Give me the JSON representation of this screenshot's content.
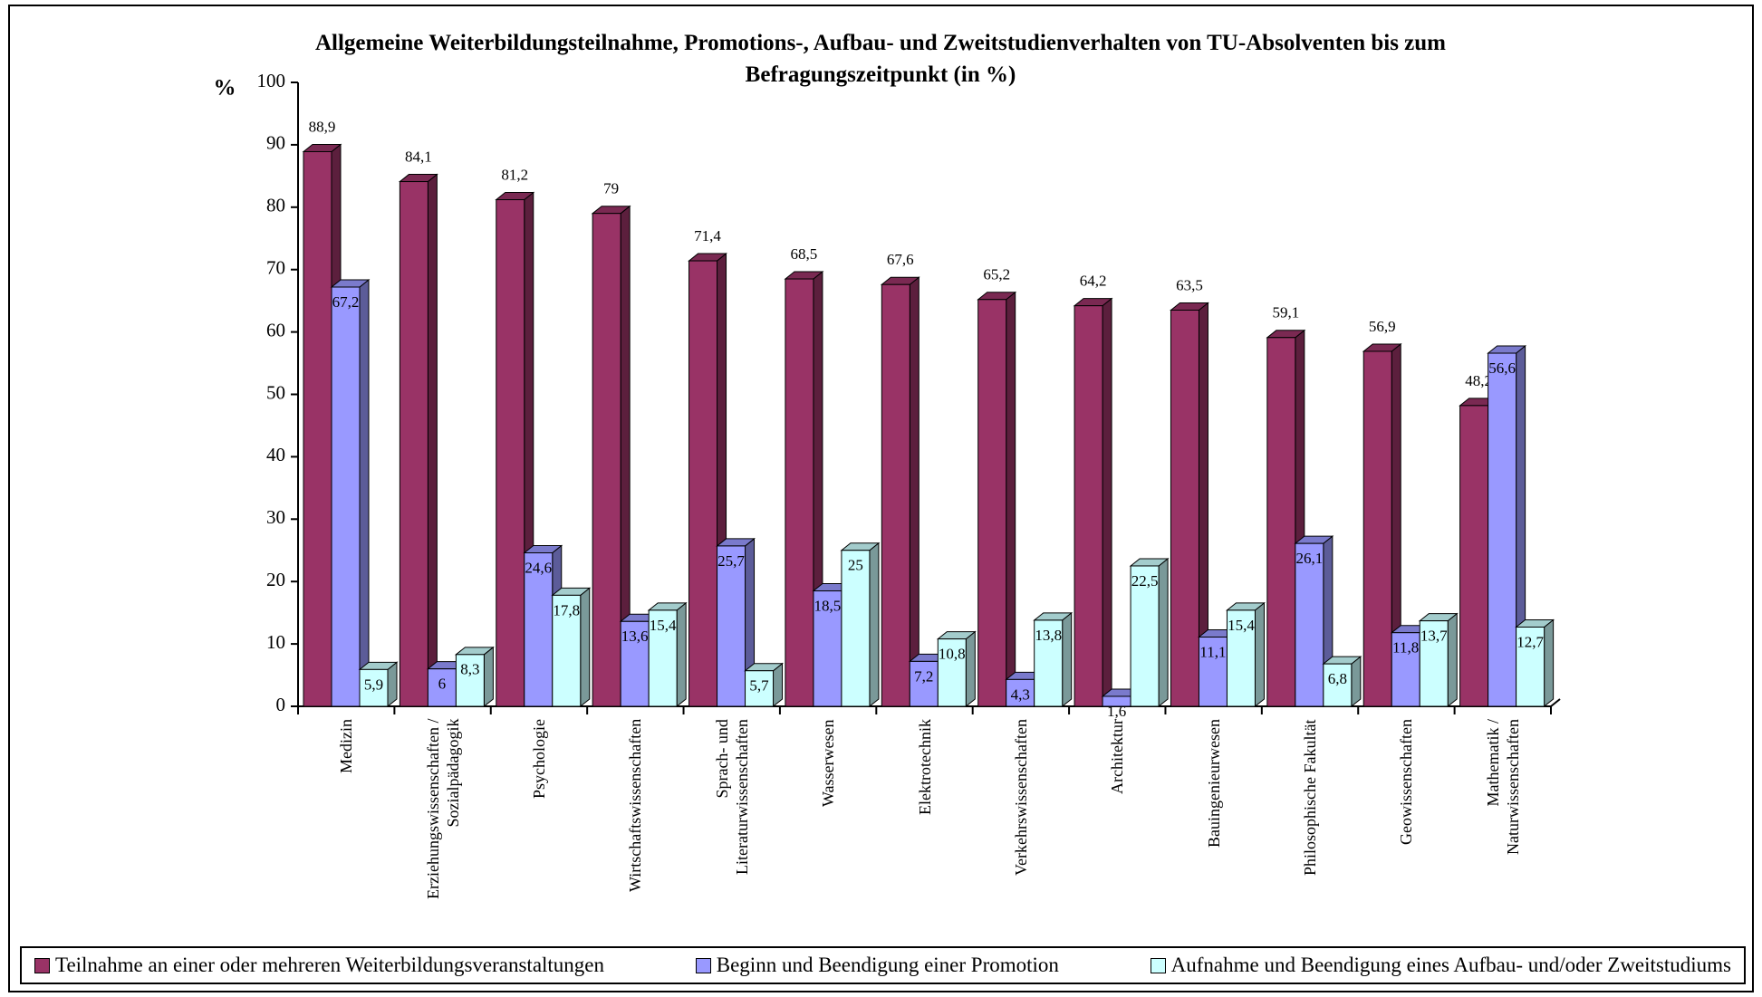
{
  "chart_data": {
    "type": "bar",
    "title": "Allgemeine Weiterbildungsteilnahme, Promotions-, Aufbau- und Zweitstudienverhalten von TU-Absolventen bis zum Befragungszeitpunkt (in %)",
    "y_label": "%",
    "categories": [
      "Medizin",
      "Erziehungswissenschaften /\nSozialpädagogik",
      "Psychologie",
      "Wirtschaftswissenschaften",
      "Sprach- und\nLiteraturwissenschaften",
      "Wasserwesen",
      "Elektrotechnik",
      "Verkehrswissenschaften",
      "Architektur",
      "Bauingenieurwesen",
      "Philosophische Fakultät",
      "Geowissenschaften",
      "Mathematik /\nNaturwissenschaften"
    ],
    "series": [
      {
        "name": "Teilnahme an einer oder mehreren Weiterbildungsveranstaltungen",
        "color": "#993366",
        "values": [
          88.9,
          84.1,
          81.2,
          79,
          71.4,
          68.5,
          67.6,
          65.2,
          64.2,
          63.5,
          59.1,
          56.9,
          48.2
        ],
        "value_labels": [
          "88,9",
          "84,1",
          "81,2",
          "79",
          "71,4",
          "68,5",
          "67,6",
          "65,2",
          "64,2",
          "63,5",
          "59,1",
          "56,9",
          "48,2"
        ]
      },
      {
        "name": "Beginn und Beendigung einer Promotion",
        "color": "#9999ff",
        "values": [
          67.2,
          6,
          24.6,
          13.6,
          25.7,
          18.5,
          7.2,
          4.3,
          1.6,
          11.1,
          26.1,
          11.8,
          56.6
        ],
        "value_labels": [
          "67,2",
          "6",
          "24,6",
          "13,6",
          "25,7",
          "18,5",
          "7,2",
          "4,3",
          "1,6",
          "11,1",
          "26,1",
          "11,8",
          "56,6"
        ]
      },
      {
        "name": "Aufnahme und Beendigung eines Aufbau- und/oder Zweitstudiums",
        "color": "#ccffff",
        "values": [
          5.9,
          8.3,
          17.8,
          15.4,
          5.7,
          25,
          10.8,
          13.8,
          22.5,
          15.4,
          6.8,
          13.7,
          12.7
        ],
        "value_labels": [
          "5,9",
          "8,3",
          "17,8",
          "15,4",
          "5,7",
          "25",
          "10,8",
          "13,8",
          "22,5",
          "15,4",
          "6,8",
          "13,7",
          "12,7"
        ]
      }
    ],
    "ylim": [
      0,
      100
    ],
    "yticks": [
      0,
      10,
      20,
      30,
      40,
      50,
      60,
      70,
      80,
      90,
      100
    ]
  }
}
